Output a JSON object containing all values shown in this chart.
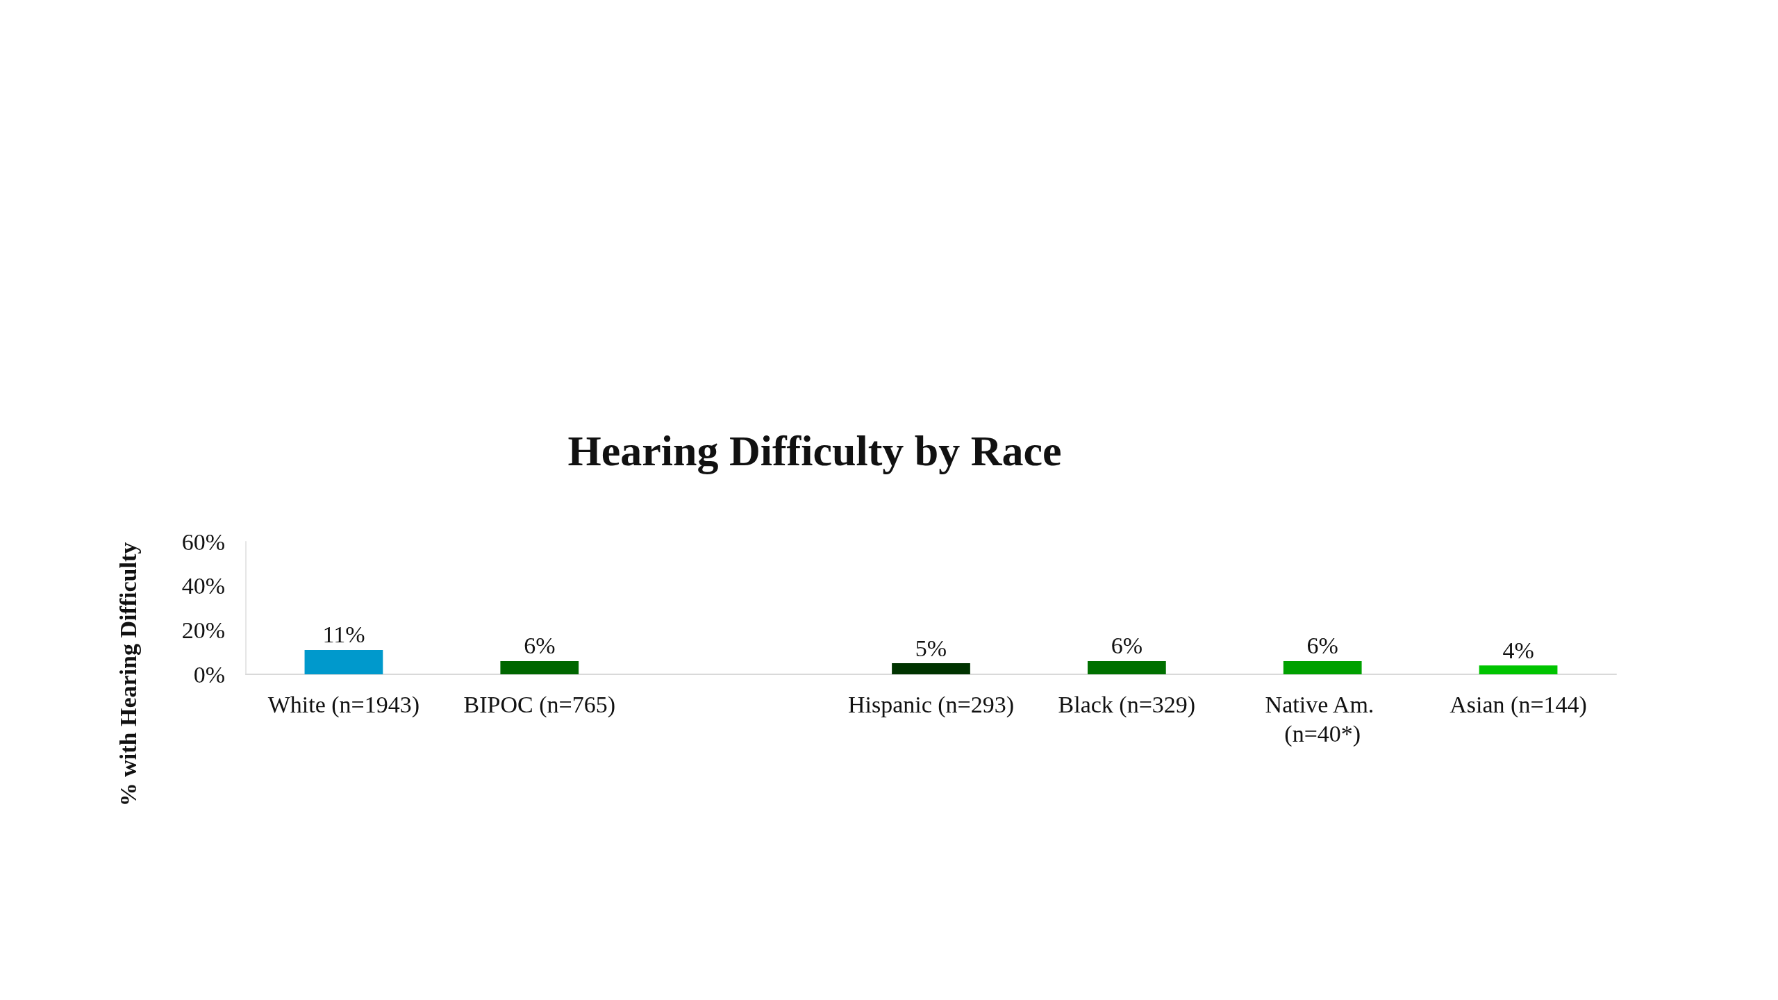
{
  "chart_data": {
    "type": "bar",
    "title": "Hearing Difficulty by Race",
    "ylabel": "% with Hearing Difficulty",
    "categories": [
      "White (n=1943)",
      "BIPOC (n=765)",
      null,
      "Hispanic (n=293)",
      "Black (n=329)",
      "Native Am. (n=40*)",
      "Asian (n=144)"
    ],
    "values": [
      11,
      6,
      null,
      5,
      6,
      6,
      4
    ],
    "colors": [
      "#0099cc",
      "#006600",
      "#006600",
      "#003300",
      "#007000",
      "#00a000",
      "#00c400"
    ],
    "value_labels": [
      "11%",
      "6%",
      null,
      "5%",
      "6%",
      "6%",
      "4%"
    ],
    "ylim": [
      0,
      60
    ],
    "yticks": [
      {
        "value": 0,
        "label": "0%"
      },
      {
        "value": 20,
        "label": "20%"
      },
      {
        "value": 40,
        "label": "40%"
      },
      {
        "value": 60,
        "label": "60%"
      }
    ],
    "grid": false
  }
}
